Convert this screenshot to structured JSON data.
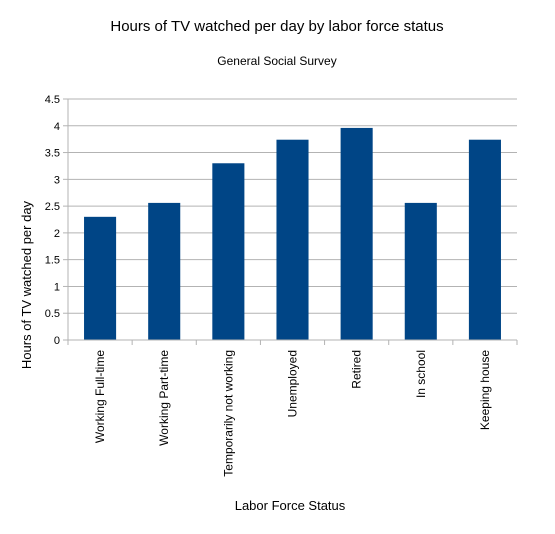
{
  "chart_data": {
    "type": "bar",
    "title": "Hours of TV watched per day by labor force status",
    "subtitle": "General Social Survey",
    "xlabel": "Labor Force Status",
    "ylabel": "Hours of TV watched per day",
    "categories": [
      "Working Full-time",
      "Working Part-time",
      "Temporarily not working",
      "Unemployed",
      "Retired",
      "In school",
      "Keeping house"
    ],
    "values": [
      2.3,
      2.56,
      3.3,
      3.74,
      3.96,
      2.56,
      3.74
    ],
    "ylim": [
      0,
      4.5
    ],
    "yticks": [
      0,
      0.5,
      1,
      1.5,
      2,
      2.5,
      3,
      3.5,
      4,
      4.5
    ],
    "ytick_labels": [
      "0",
      "0.5",
      "1",
      "1.5",
      "2",
      "2.5",
      "3",
      "3.5",
      "4",
      "4.5"
    ],
    "grid": true,
    "legend": "none",
    "bar_color": "#004586",
    "grid_color": "#b3b3b3",
    "axis_color": "#b3b3b3"
  }
}
